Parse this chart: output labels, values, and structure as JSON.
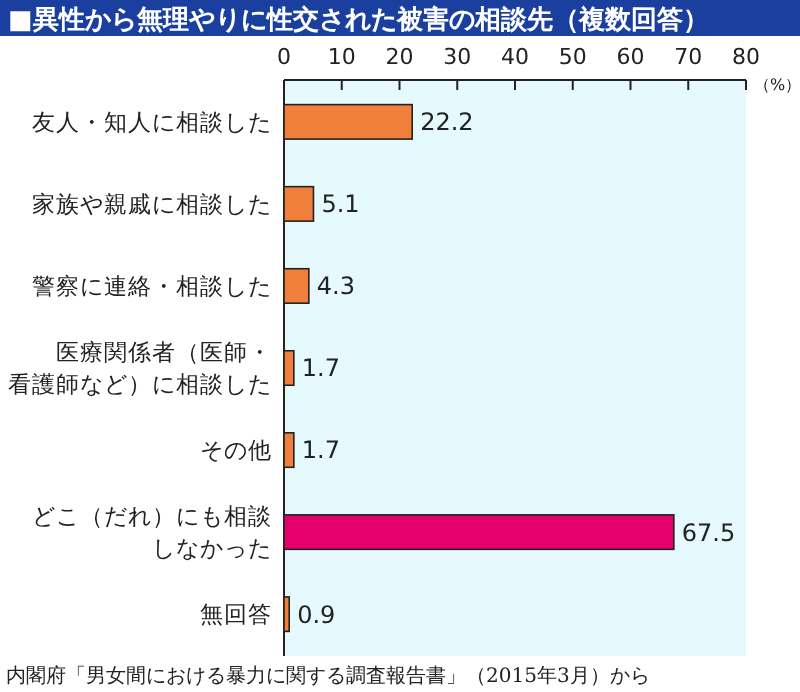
{
  "chart_data": {
    "type": "bar",
    "orientation": "horizontal",
    "title": "■異性から無理やりに性交された被害の相談先（複数回答）",
    "xlabel": "（%）",
    "categories": [
      "友人・知人に相談した",
      "家族や親戚に相談した",
      "警察に連絡・相談した",
      "医療関係者（医師・看護師など）に相談した",
      "その他",
      "どこ（だれ）にも相談しなかった",
      "無回答"
    ],
    "values": [
      22.2,
      5.1,
      4.3,
      1.7,
      1.7,
      67.5,
      0.9
    ],
    "colors": [
      "#f07f3c",
      "#f07f3c",
      "#f07f3c",
      "#f07f3c",
      "#f07f3c",
      "#e5006e",
      "#f07f3c"
    ],
    "xlim": [
      0,
      80
    ],
    "xticks": [
      0,
      10,
      20,
      30,
      40,
      50,
      60,
      70,
      80
    ],
    "grid": false,
    "data_labels": true,
    "annotations": [
      "内閣府「男女間における暴力に関する調査報告書」（2015年3月）から"
    ]
  }
}
